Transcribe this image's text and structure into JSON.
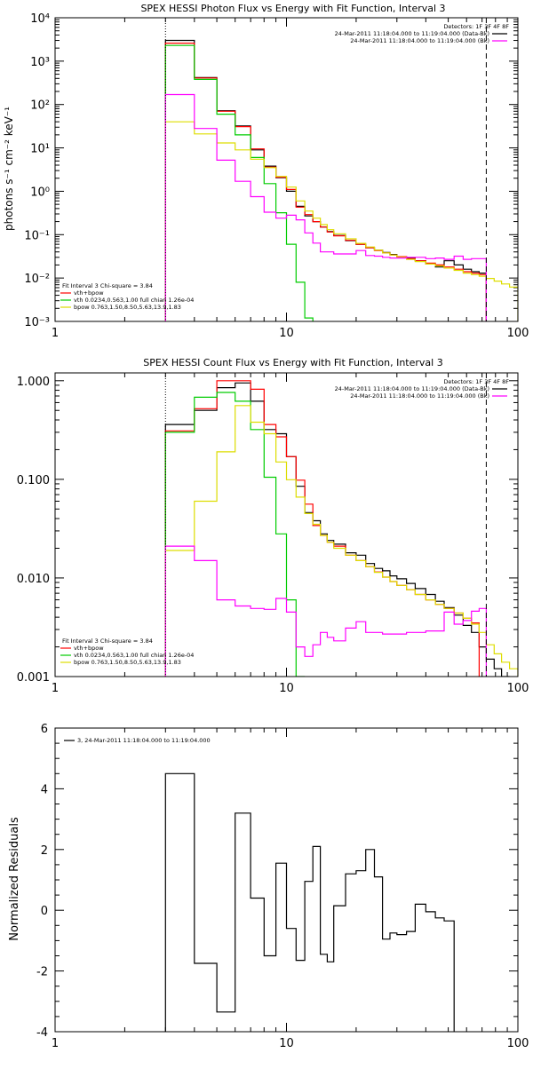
{
  "colors": {
    "background": "#ffffff",
    "axes": "#000000",
    "data_total": "#000000",
    "model_total": "#ff0000",
    "vth": "#00cc00",
    "bpow": "#dddd00",
    "background_spec": "#ff00ff"
  },
  "chart_data": [
    {
      "type": "line",
      "step": true,
      "title": "SPEX HESSI Photon Flux vs Energy with Fit Function, Interval 3",
      "xlabel": "",
      "ylabel": "photons s⁻¹ cm⁻² keV⁻¹",
      "xscale": "log",
      "yscale": "log",
      "xlim": [
        1,
        100
      ],
      "ylim": [
        0.001,
        10000
      ],
      "xticks": [
        "1",
        "10",
        "100"
      ],
      "yticks": [
        "10⁻³",
        "10⁻²",
        "10⁻¹",
        "10⁰",
        "10¹",
        "10²",
        "10³",
        "10⁴"
      ],
      "vlines": [
        {
          "x": 3,
          "style": "dotted"
        },
        {
          "x": 73,
          "style": "dashed"
        }
      ],
      "legend_topright": {
        "lines": [
          "Detectors: 1F 3F 4F 8F",
          "24-Mar-2011 11:18:04.000 to 11:19:04.000 (Data-Bk)",
          "24-Mar-2011 11:18:04.000 to 11:19:04.000 (Bk)"
        ],
        "colors": [
          "#000000",
          "#ff00ff"
        ]
      },
      "legend_bottomleft": {
        "lines": [
          "Fit Interval 3   Chi-square = 3.84",
          "vth+bpow",
          "vth 0.0234,0.563,1.00  full chian 1.26e-04",
          "bpow 0.763,1.50,8.50,5.63,13.9,1.83"
        ],
        "colors": [
          "#000000",
          "#ff0000",
          "#00cc00",
          "#dddd00"
        ]
      },
      "edges": [
        3,
        4,
        5,
        6,
        7,
        8,
        9,
        10,
        11,
        12,
        13,
        14,
        15,
        16,
        18,
        20,
        22,
        24,
        26,
        28,
        30,
        33,
        36,
        40,
        44,
        48,
        53,
        58,
        63,
        68,
        73,
        79,
        85,
        92,
        100
      ],
      "series": [
        {
          "color": "#000000",
          "values": [
            3000,
            420,
            72,
            32,
            9,
            3.8,
            2.05,
            1.0,
            0.45,
            0.27,
            0.2,
            0.15,
            0.118,
            0.096,
            0.073,
            0.06,
            0.05,
            0.044,
            0.039,
            0.035,
            0.031,
            0.029,
            0.025,
            0.021,
            0.018,
            0.025,
            0.02,
            0.016,
            0.014,
            0.013
          ]
        },
        {
          "color": "#ff0000",
          "values": [
            2600,
            410,
            70,
            31,
            9.5,
            3.6,
            2.1,
            1.1,
            0.43,
            0.29,
            0.2,
            0.15,
            0.115,
            0.094,
            0.074,
            0.06,
            0.05,
            0.043,
            0.038,
            0.034,
            0.031,
            0.028,
            0.025,
            0.022,
            0.02,
            0.018,
            0.016,
            0.014,
            0.013,
            0.012
          ]
        },
        {
          "color": "#00cc00",
          "values": [
            2300,
            380,
            60,
            20,
            6,
            1.5,
            0.32,
            0.06,
            0.008,
            0.0012
          ]
        },
        {
          "color": "#dddd00",
          "values": [
            40,
            21,
            13,
            9,
            5.5,
            3.5,
            2.2,
            1.25,
            0.6,
            0.35,
            0.24,
            0.17,
            0.13,
            0.105,
            0.08,
            0.063,
            0.052,
            0.044,
            0.038,
            0.034,
            0.03,
            0.027,
            0.024,
            0.021,
            0.019,
            0.017,
            0.015,
            0.013,
            0.012,
            0.011,
            0.0098,
            0.0085,
            0.0073,
            0.0062
          ]
        },
        {
          "color": "#ff00ff",
          "values": [
            170,
            28,
            5.2,
            1.7,
            0.75,
            0.33,
            0.24,
            0.28,
            0.22,
            0.11,
            0.064,
            0.04,
            0.04,
            0.036,
            0.036,
            0.043,
            0.033,
            0.032,
            0.03,
            0.029,
            0.029,
            0.03,
            0.03,
            0.028,
            0.029,
            0.027,
            0.032,
            0.027,
            0.028,
            0.028
          ]
        }
      ]
    },
    {
      "type": "line",
      "step": true,
      "title": "SPEX HESSI Count Flux vs Energy with Fit Function, Interval 3",
      "xlabel": "",
      "ylabel": "",
      "xscale": "log",
      "yscale": "log",
      "xlim": [
        1,
        100
      ],
      "ylim": [
        0.001,
        1.2
      ],
      "xticks": [
        "1",
        "10",
        "100"
      ],
      "yticks": [
        "0.001",
        "0.010",
        "0.100",
        "1.000"
      ],
      "vlines": [
        {
          "x": 3,
          "style": "dotted"
        },
        {
          "x": 73,
          "style": "dashed"
        }
      ],
      "legend_topright": {
        "lines": [
          "Detectors: 1F 3F 4F 8F",
          "24-Mar-2011 11:18:04.000 to 11:19:04.000 (Data-Bk)",
          "24-Mar-2011 11:18:04.000 to 11:19:04.000 (Bk)"
        ],
        "colors": [
          "#000000",
          "#ff00ff"
        ]
      },
      "legend_bottomleft": {
        "lines": [
          "Fit Interval 3   Chi-square = 3.84",
          "vth+bpow",
          "vth 0.0234,0.563,1.00  full chian 1.26e-04",
          "bpow 0.763,1.50,8.50,5.63,13.9,1.83"
        ],
        "colors": [
          "#000000",
          "#ff0000",
          "#00cc00",
          "#dddd00"
        ]
      },
      "edges": [
        3,
        4,
        5,
        6,
        7,
        8,
        9,
        10,
        11,
        12,
        13,
        14,
        15,
        16,
        18,
        20,
        22,
        24,
        26,
        28,
        30,
        33,
        36,
        40,
        44,
        48,
        53,
        58,
        63,
        68,
        73,
        79,
        85,
        92,
        100
      ],
      "series": [
        {
          "color": "#000000",
          "values": [
            0.36,
            0.5,
            0.85,
            0.95,
            0.62,
            0.32,
            0.29,
            0.17,
            0.085,
            0.046,
            0.038,
            0.028,
            0.024,
            0.022,
            0.018,
            0.017,
            0.014,
            0.0125,
            0.0118,
            0.0105,
            0.0098,
            0.0088,
            0.0078,
            0.0068,
            0.0058,
            0.005,
            0.0042,
            0.0033,
            0.0028,
            0.002,
            0.0015,
            0.0012,
            0.001
          ]
        },
        {
          "color": "#ff0000",
          "values": [
            0.31,
            0.52,
            1.0,
            1.0,
            0.82,
            0.36,
            0.27,
            0.17,
            0.098,
            0.056,
            0.034,
            0.027,
            0.023,
            0.021,
            0.017,
            0.015,
            0.013,
            0.0115,
            0.0102,
            0.0092,
            0.0084,
            0.0076,
            0.0068,
            0.006,
            0.0054,
            0.0049,
            0.0044,
            0.0039,
            0.0035
          ]
        },
        {
          "color": "#00cc00",
          "values": [
            0.3,
            0.68,
            0.76,
            0.62,
            0.32,
            0.105,
            0.028,
            0.006,
            0.001
          ]
        },
        {
          "color": "#dddd00",
          "values": [
            0.019,
            0.06,
            0.19,
            0.56,
            0.38,
            0.29,
            0.15,
            0.099,
            0.066,
            0.045,
            0.035,
            0.027,
            0.023,
            0.02,
            0.017,
            0.015,
            0.013,
            0.0114,
            0.0102,
            0.0092,
            0.0084,
            0.0076,
            0.0068,
            0.006,
            0.0054,
            0.0049,
            0.0044,
            0.0039,
            0.0034,
            0.0028,
            0.0021,
            0.0017,
            0.0014,
            0.0012
          ]
        },
        {
          "color": "#ff00ff",
          "values": [
            0.021,
            0.015,
            0.006,
            0.0052,
            0.0049,
            0.0048,
            0.0062,
            0.0045,
            0.002,
            0.0016,
            0.0021,
            0.0028,
            0.0025,
            0.0023,
            0.0031,
            0.0036,
            0.0028,
            0.0028,
            0.0027,
            0.0027,
            0.0027,
            0.0028,
            0.0028,
            0.0029,
            0.0029,
            0.0045,
            0.0034,
            0.0037,
            0.0046,
            0.0049
          ]
        }
      ]
    },
    {
      "type": "line",
      "step": true,
      "title": "",
      "xlabel": "",
      "ylabel": "Normalized Residuals",
      "xscale": "log",
      "yscale": "linear",
      "xlim": [
        1,
        100
      ],
      "ylim": [
        -4,
        6
      ],
      "xticks": [
        "1",
        "10",
        "100"
      ],
      "yticks": [
        "-4",
        "-2",
        "0",
        "2",
        "4",
        "6"
      ],
      "legend_topleft": {
        "lines": [
          "3, 24-Mar-2011 11:18:04.000 to 11:19:04.000"
        ],
        "colors": [
          "#000000"
        ]
      },
      "edges": [
        3,
        4,
        5,
        6,
        7,
        8,
        9,
        10,
        11,
        12,
        13,
        14,
        15,
        16,
        18,
        20,
        22,
        24,
        26,
        28,
        30,
        33,
        36,
        40,
        44,
        48,
        53,
        58,
        63,
        68,
        73
      ],
      "series": [
        {
          "color": "#000000",
          "values": [
            4.5,
            -1.75,
            -3.35,
            3.2,
            0.4,
            -1.5,
            1.55,
            -0.6,
            -1.65,
            0.95,
            2.1,
            -1.45,
            -1.7,
            0.15,
            1.2,
            1.3,
            2.0,
            1.1,
            -0.95,
            -0.75,
            -0.8,
            -0.7,
            0.2,
            -0.05,
            -0.25,
            -0.35
          ]
        }
      ]
    }
  ]
}
